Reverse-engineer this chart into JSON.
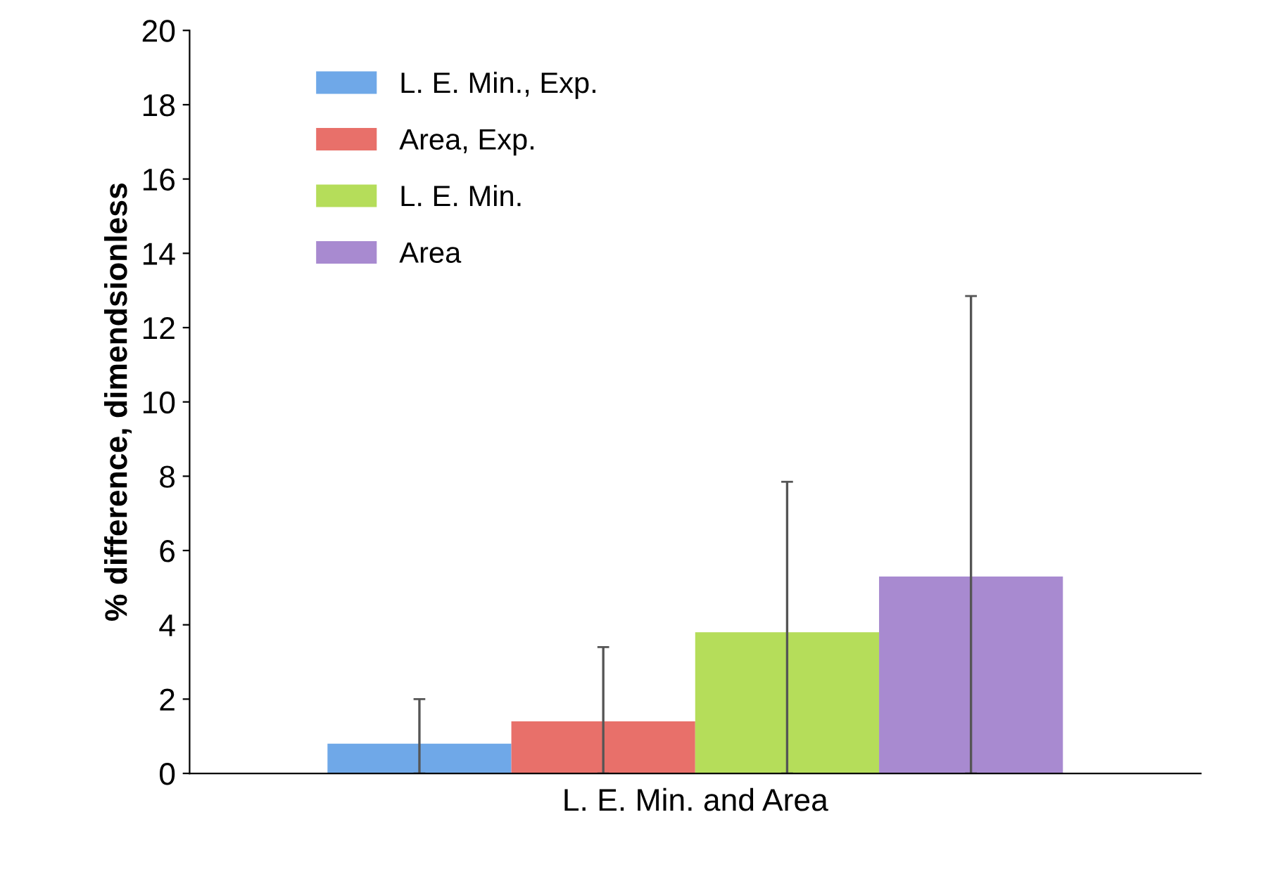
{
  "chart_data": {
    "type": "bar",
    "xlabel": "L. E. Min. and Area",
    "ylabel": "% difference, dimendsionless",
    "categories": [
      null
    ],
    "series": [
      {
        "name": "L. E. Min., Exp.",
        "color": "#6fa8e8",
        "values": [
          0.8
        ],
        "errors": [
          [
            0,
            2.0
          ]
        ]
      },
      {
        "name": "Area, Exp.",
        "color": "#e8706a",
        "values": [
          1.4
        ],
        "errors": [
          [
            0,
            3.4
          ]
        ]
      },
      {
        "name": "L. E. Min.",
        "color": "#b5dd5a",
        "values": [
          3.8
        ],
        "errors": [
          [
            0,
            7.85
          ]
        ]
      },
      {
        "name": "Area",
        "color": "#a88ad0",
        "values": [
          5.3
        ],
        "errors": [
          [
            0,
            12.85
          ]
        ]
      }
    ],
    "ylim": [
      0,
      20
    ],
    "yticks": [
      0,
      2,
      4,
      6,
      8,
      10,
      12,
      14,
      16,
      18,
      20
    ],
    "grid": false,
    "legend": "top left"
  }
}
